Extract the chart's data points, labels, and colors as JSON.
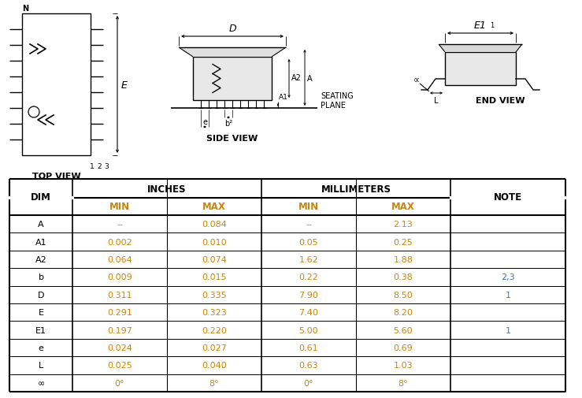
{
  "background_color": "#ffffff",
  "table_data": [
    [
      "A",
      "--",
      "0.084",
      "--",
      "2.13",
      ""
    ],
    [
      "A1",
      "0.002",
      "0.010",
      "0.05",
      "0.25",
      ""
    ],
    [
      "A2",
      "0.064",
      "0.074",
      "1.62",
      "1.88",
      ""
    ],
    [
      "b",
      "0.009",
      "0.015",
      "0.22",
      "0.38",
      "2,3"
    ],
    [
      "D",
      "0.311",
      "0.335",
      "7.90",
      "8.50",
      "1"
    ],
    [
      "E",
      "0.291",
      "0.323",
      "7.40",
      "8.20",
      ""
    ],
    [
      "E1",
      "0.197",
      "0.220",
      "5.00",
      "5.60",
      "1"
    ],
    [
      "e",
      "0.024",
      "0.027",
      "0.61",
      "0.69",
      ""
    ],
    [
      "L",
      "0.025",
      "0.040",
      "0.63",
      "1.03",
      ""
    ],
    [
      "∞",
      "0°",
      "8°",
      "0°",
      "8°",
      ""
    ]
  ],
  "dim_col_color": "#000000",
  "min_max_color": "#c8860a",
  "note_color": "#4472c4",
  "header_color": "#000000",
  "top_view_label": "TOP VIEW",
  "side_view_label": "SIDE VIEW",
  "end_view_label": "END VIEW",
  "seating_plane_label": "SEATING\nPLANE"
}
